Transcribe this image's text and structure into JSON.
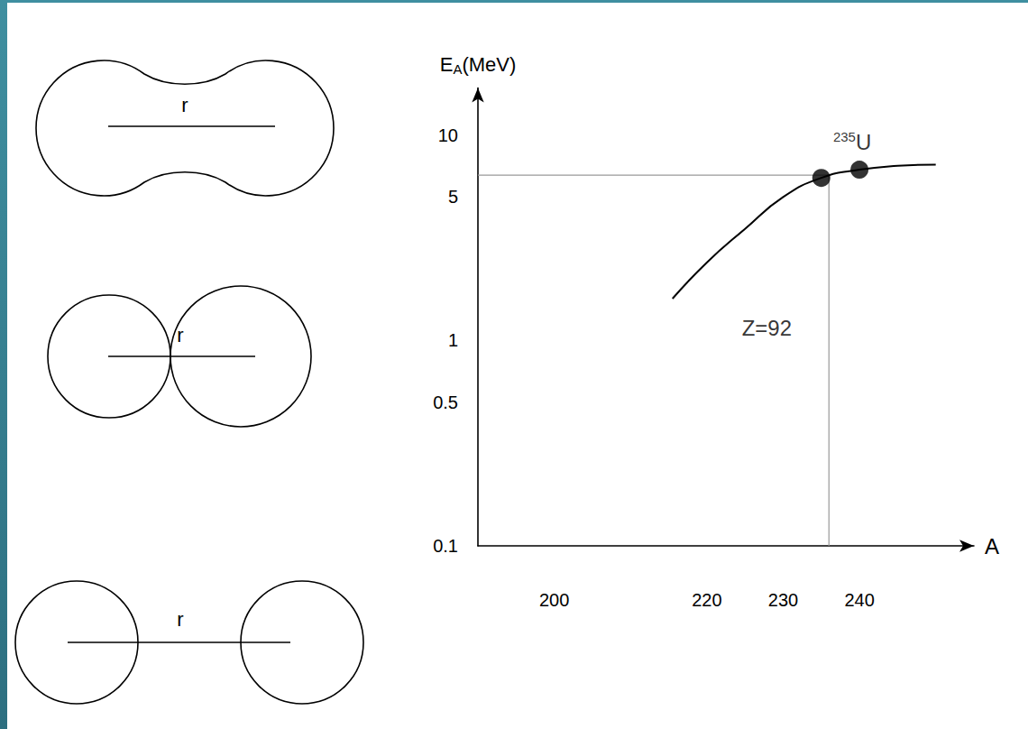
{
  "chart_data": {
    "type": "line",
    "ylabel": {
      "main": "E",
      "sub": "A",
      "rest": "(MeV)"
    },
    "xlabel": "A",
    "log": "y",
    "grid": false,
    "xlim": [
      190,
      255
    ],
    "xticks": [
      200,
      220,
      230,
      240
    ],
    "ylim": [
      0.1,
      17
    ],
    "yticks": [
      0.1,
      0.5,
      1,
      5,
      10
    ],
    "series": [
      {
        "color": "#000000",
        "line_style": "solid",
        "x": [
          215.5,
          220,
          225,
          230,
          235,
          240,
          245,
          250
        ],
        "values": [
          1.6,
          2.4,
          3.5,
          5.0,
          6.2,
          6.8,
          7.1,
          7.2
        ]
      }
    ],
    "points": {
      "color": "#000000",
      "marker": "circle",
      "x": [
        235,
        240
      ],
      "values": [
        6.2,
        6.8
      ]
    },
    "point_label": {
      "mass": "235",
      "symbol": "U",
      "x": 240,
      "y": 6.8
    },
    "guide": {
      "x": 236,
      "y": 6.4,
      "color": "#999999"
    },
    "annotations": [
      {
        "text": "Z=92",
        "x": 224,
        "y": 1.15
      }
    ]
  },
  "diagrams": [
    {
      "label": "r"
    },
    {
      "label": "r"
    },
    {
      "label": "r"
    }
  ]
}
